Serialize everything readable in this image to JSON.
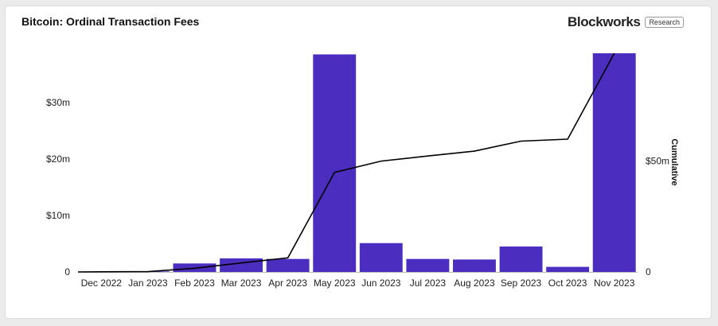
{
  "header": {
    "title": "Bitcoin: Ordinal Transaction Fees",
    "brand_name": "Blockworks",
    "brand_badge": "Research"
  },
  "colors": {
    "bar": "#4b2ec0",
    "line": "#000000",
    "text": "#222222"
  },
  "chart_data": {
    "type": "bar",
    "title": "Bitcoin: Ordinal Transaction Fees",
    "categories": [
      "Dec 2022",
      "Jan 2023",
      "Feb 2023",
      "Mar 2023",
      "Apr 2023",
      "May 2023",
      "Jun 2023",
      "Jul 2023",
      "Aug 2023",
      "Sep 2023",
      "Oct 2023",
      "Nov 2023"
    ],
    "series": [
      {
        "name": "Ordinal Transaction Fees",
        "axis": "left",
        "kind": "bar",
        "values": [
          0.05,
          0.1,
          1.5,
          2.4,
          2.3,
          38.5,
          5.1,
          2.3,
          2.2,
          4.5,
          0.9,
          38.7
        ]
      },
      {
        "name": "Cumulative",
        "axis": "right",
        "kind": "line",
        "values": [
          0.05,
          0.15,
          1.65,
          4.05,
          6.35,
          44.85,
          49.95,
          52.25,
          54.45,
          58.95,
          59.85,
          98.55
        ]
      }
    ],
    "left_axis": {
      "ylim": [
        0,
        38.7
      ],
      "ticks": [
        0,
        10,
        20,
        30
      ],
      "tick_labels": [
        "0",
        "$10m",
        "$20m",
        "$30m"
      ]
    },
    "right_axis": {
      "label": "Cumulative",
      "ylim": [
        0,
        98.55
      ],
      "ticks": [
        0,
        50
      ],
      "tick_labels": [
        "0",
        "$50m"
      ]
    },
    "grid": false
  }
}
